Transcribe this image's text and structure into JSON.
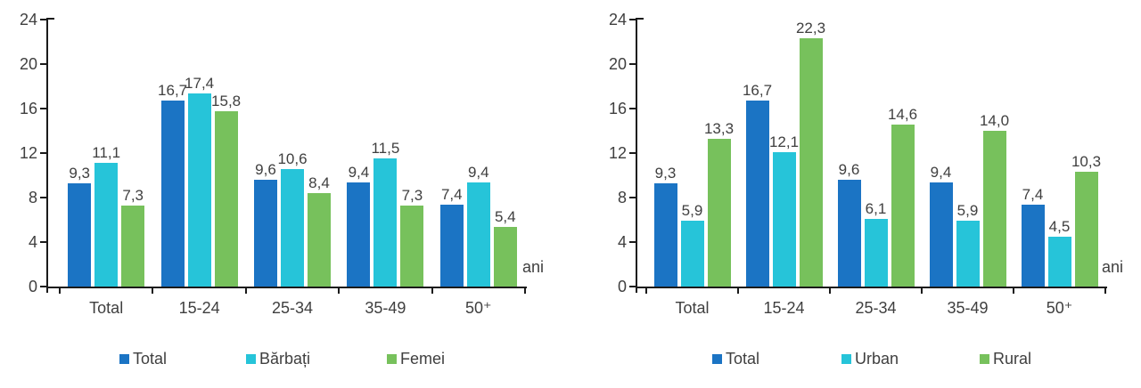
{
  "page": {
    "background": "#ffffff",
    "text_color": "#3f3f3f",
    "axis_color": "#1a1a1a",
    "series_colors": {
      "blue": "#1b74c4",
      "cyan": "#26c4d9",
      "green": "#77c15c"
    }
  },
  "chart_data": [
    {
      "name": "rata-somajului-pe-sexe",
      "type": "bar",
      "categories": [
        "Total",
        "15-24",
        "25-34",
        "35-49",
        "50⁺"
      ],
      "ylim": [
        0,
        24
      ],
      "y_ticks": [
        24,
        20,
        16,
        12,
        8,
        4,
        0
      ],
      "grid": false,
      "legend_position": "bottom",
      "unit_label": "ani",
      "series": [
        {
          "name": "Total",
          "color": "#1b74c4",
          "values": [
            9.3,
            16.7,
            9.6,
            9.4,
            7.4
          ],
          "labels": [
            "9,3",
            "16,7",
            "9,6",
            "9,4",
            "7,4"
          ]
        },
        {
          "name": "Bărbați",
          "color": "#26c4d9",
          "values": [
            11.1,
            17.4,
            10.6,
            11.5,
            9.4
          ],
          "labels": [
            "11,1",
            "17,4",
            "10,6",
            "11,5",
            "9,4"
          ]
        },
        {
          "name": "Femei",
          "color": "#77c15c",
          "values": [
            7.3,
            15.8,
            8.4,
            7.3,
            5.4
          ],
          "labels": [
            "7,3",
            "15,8",
            "8,4",
            "7,3",
            "5,4"
          ]
        }
      ]
    },
    {
      "name": "rata-somajului-pe-medii",
      "type": "bar",
      "categories": [
        "Total",
        "15-24",
        "25-34",
        "35-49",
        "50⁺"
      ],
      "ylim": [
        0,
        24
      ],
      "y_ticks": [
        24,
        20,
        16,
        12,
        8,
        4,
        0
      ],
      "grid": false,
      "legend_position": "bottom",
      "unit_label": "ani",
      "series": [
        {
          "name": "Total",
          "color": "#1b74c4",
          "values": [
            9.3,
            16.7,
            9.6,
            9.4,
            7.4
          ],
          "labels": [
            "9,3",
            "16,7",
            "9,6",
            "9,4",
            "7,4"
          ]
        },
        {
          "name": "Urban",
          "color": "#26c4d9",
          "values": [
            5.9,
            12.1,
            6.1,
            5.9,
            4.5
          ],
          "labels": [
            "5,9",
            "12,1",
            "6,1",
            "5,9",
            "4,5"
          ]
        },
        {
          "name": "Rural",
          "color": "#77c15c",
          "values": [
            13.3,
            22.3,
            14.6,
            14.0,
            10.3
          ],
          "labels": [
            "13,3",
            "22,3",
            "14,6",
            "14,0",
            "10,3"
          ]
        }
      ]
    }
  ]
}
